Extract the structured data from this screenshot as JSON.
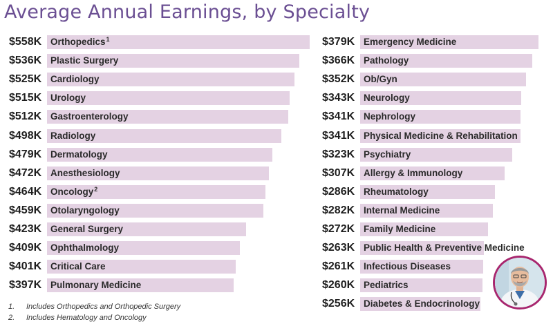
{
  "title": "Average Annual Earnings, by Specialty",
  "chart_data": {
    "type": "bar",
    "orientation": "horizontal",
    "title": "Average Annual Earnings, by Specialty",
    "unit": "$K",
    "columns": [
      {
        "categories": [
          "Orthopedics",
          "Plastic Surgery",
          "Cardiology",
          "Urology",
          "Gastroenterology",
          "Radiology",
          "Dermatology",
          "Anesthesiology",
          "Oncology",
          "Otolaryngology",
          "General Surgery",
          "Ophthalmology",
          "Critical Care",
          "Pulmonary Medicine"
        ],
        "markers": [
          "1",
          "",
          "",
          "",
          "",
          "",
          "",
          "",
          "2",
          "",
          "",
          "",
          "",
          ""
        ],
        "values": [
          558,
          536,
          525,
          515,
          512,
          498,
          479,
          472,
          464,
          459,
          423,
          409,
          401,
          397
        ],
        "value_labels": [
          "$558K",
          "$536K",
          "$525K",
          "$515K",
          "$512K",
          "$498K",
          "$479K",
          "$472K",
          "$464K",
          "$459K",
          "$423K",
          "$409K",
          "$401K",
          "$397K"
        ]
      },
      {
        "categories": [
          "Emergency Medicine",
          "Pathology",
          "Ob/Gyn",
          "Neurology",
          "Nephrology",
          "Physical Medicine & Rehabilitation",
          "Psychiatry",
          "Allergy & Immunology",
          "Rheumatology",
          "Internal Medicine",
          "Family Medicine",
          "Public Health & Preventive Medicine",
          "Infectious Diseases",
          "Pediatrics",
          "Diabetes & Endocrinology"
        ],
        "markers": [
          "",
          "",
          "",
          "",
          "",
          "",
          "",
          "",
          "",
          "",
          "",
          "",
          "",
          "",
          ""
        ],
        "values": [
          379,
          366,
          352,
          343,
          341,
          341,
          323,
          307,
          286,
          282,
          272,
          263,
          261,
          260,
          256
        ],
        "value_labels": [
          "$379K",
          "$366K",
          "$352K",
          "$343K",
          "$341K",
          "$341K",
          "$323K",
          "$307K",
          "$286K",
          "$282K",
          "$272K",
          "$263K",
          "$261K",
          "$260K",
          "$256K"
        ]
      }
    ],
    "colors": {
      "bar": "#e4d2e3",
      "title": "#6b4f93",
      "avatar_border": "#a8266e"
    }
  },
  "footnotes": [
    {
      "marker": "1.",
      "text": "Includes Orthopedics and Orthopedic Surgery"
    },
    {
      "marker": "2.",
      "text": "Includes Hematology and Oncology"
    }
  ]
}
